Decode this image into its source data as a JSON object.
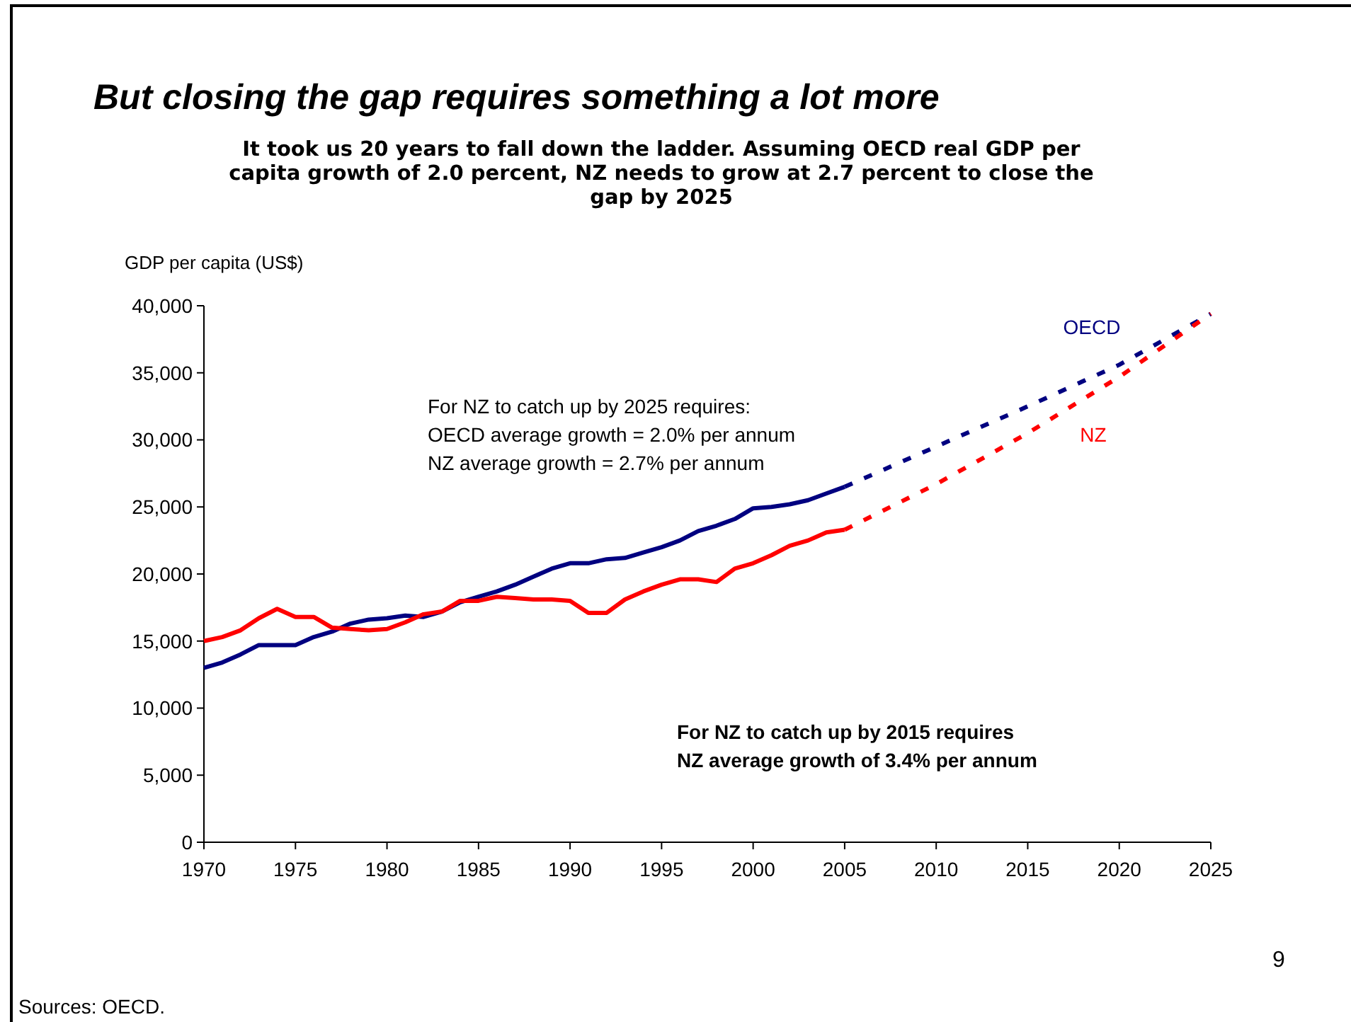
{
  "chart_data": {
    "type": "line",
    "title": "But closing the gap requires something a lot more",
    "subtitle": "It took us 20 years to fall down the ladder.  Assuming OECD real GDP per\ncapita growth of 2.0 percent, NZ needs to grow at 2.7 percent to close the\ngap by 2025",
    "ylabel": "GDP per capita (US$)",
    "x": [
      1970,
      1971,
      1972,
      1973,
      1974,
      1975,
      1976,
      1977,
      1978,
      1979,
      1980,
      1981,
      1982,
      1983,
      1984,
      1985,
      1986,
      1987,
      1988,
      1989,
      1990,
      1991,
      1992,
      1993,
      1994,
      1995,
      1996,
      1997,
      1998,
      1999,
      2000,
      2001,
      2002,
      2003,
      2004,
      2005
    ],
    "series": [
      {
        "color": "#000080",
        "line_style": "solid",
        "values": [
          13000,
          13400,
          14000,
          14700,
          14700,
          14700,
          15300,
          15700,
          16300,
          16600,
          16700,
          16900,
          16800,
          17200,
          17900,
          18300,
          18700,
          19200,
          19800,
          20400,
          20800,
          20800,
          21100,
          21200,
          21600,
          22000,
          22500,
          23200,
          23600,
          24100,
          24900,
          25000,
          25200,
          25500,
          26000,
          26500
        ]
      },
      {
        "color": "#ff0000",
        "line_style": "solid",
        "values": [
          15000,
          15300,
          15800,
          16700,
          17400,
          16800,
          16800,
          16000,
          15900,
          15800,
          15900,
          16400,
          17000,
          17200,
          18000,
          18000,
          18300,
          18200,
          18100,
          18100,
          18000,
          17100,
          17100,
          18100,
          18700,
          19200,
          19600,
          19600,
          19400,
          20400,
          20800,
          21400,
          22100,
          22500,
          23100,
          23300
        ]
      },
      {
        "name": "OECD",
        "color": "#000080",
        "line_style": "dashed",
        "x": [
          2005,
          2010,
          2015,
          2020,
          2025
        ],
        "values": [
          26500,
          29500,
          32500,
          35600,
          39400
        ]
      },
      {
        "name": "NZ",
        "color": "#ff0000",
        "line_style": "dashed",
        "x": [
          2005,
          2010,
          2015,
          2020,
          2025
        ],
        "values": [
          23300,
          26700,
          30500,
          34700,
          39400
        ]
      }
    ],
    "xlim": [
      1970,
      2025
    ],
    "xticks": [
      1970,
      1975,
      1980,
      1985,
      1990,
      1995,
      2000,
      2005,
      2010,
      2015,
      2020,
      2025
    ],
    "ylim": [
      0,
      40000
    ],
    "yticks": [
      {
        "value": 0,
        "label": "0"
      },
      {
        "value": 5000,
        "label": "5,000"
      },
      {
        "value": 10000,
        "label": "10,000"
      },
      {
        "value": 15000,
        "label": "15,000"
      },
      {
        "value": 20000,
        "label": "20,000"
      },
      {
        "value": 25000,
        "label": "25,000"
      },
      {
        "value": 30000,
        "label": "30,000"
      },
      {
        "value": 35000,
        "label": "35,000"
      },
      {
        "value": 40000,
        "label": "40,000"
      }
    ],
    "grid": false,
    "marker": "none",
    "annotations": [
      "For NZ to catch up by 2025 requires:\nOECD average growth = 2.0% per annum\nNZ  average growth = 2.7% per annum",
      "For NZ to catch up by 2015 requires\nNZ  average growth of 3.4% per annum",
      "9",
      "Sources: OECD."
    ]
  }
}
